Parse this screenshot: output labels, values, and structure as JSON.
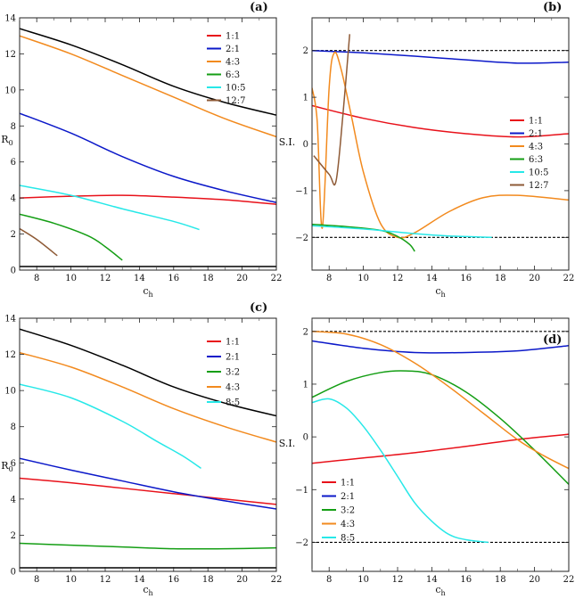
{
  "colors": {
    "red": "#e8111a",
    "blue": "#0b18c9",
    "orange": "#f28a1e",
    "green": "#149e14",
    "cyan": "#27e8e8",
    "brown": "#8e5a36",
    "black": "#000000"
  },
  "chart_data": [
    {
      "panel": "(a)",
      "type": "line",
      "xlabel": "c",
      "xlabel_sub": "h",
      "ylabel": "R",
      "ylabel_sub": "0",
      "xlim": [
        7,
        22
      ],
      "ylim": [
        0,
        14
      ],
      "xticks": [
        8,
        10,
        12,
        14,
        16,
        18,
        20,
        22
      ],
      "yticks": [
        0,
        2,
        4,
        6,
        8,
        10,
        12,
        14
      ],
      "legend_position": "top-right",
      "series": [
        {
          "name": "1:1",
          "color": "red",
          "x": [
            7,
            10,
            13,
            16,
            19,
            22
          ],
          "y": [
            4.0,
            4.1,
            4.15,
            4.05,
            3.9,
            3.65
          ]
        },
        {
          "name": "2:1",
          "color": "blue",
          "x": [
            7,
            10,
            13,
            16,
            19,
            22
          ],
          "y": [
            8.7,
            7.6,
            6.3,
            5.2,
            4.4,
            3.75
          ]
        },
        {
          "name": "4:3",
          "color": "orange",
          "x": [
            7,
            10,
            13,
            16,
            19,
            22
          ],
          "y": [
            13.0,
            12.0,
            10.8,
            9.6,
            8.4,
            7.4
          ]
        },
        {
          "name": "6:3",
          "color": "green",
          "x": [
            7,
            9,
            11,
            12,
            13
          ],
          "y": [
            3.1,
            2.6,
            1.9,
            1.3,
            0.55
          ]
        },
        {
          "name": "10:5",
          "color": "cyan",
          "x": [
            7,
            10,
            13,
            16,
            17.5
          ],
          "y": [
            4.7,
            4.15,
            3.4,
            2.7,
            2.25
          ]
        },
        {
          "name": "12:7",
          "color": "brown",
          "x": [
            7,
            8,
            9.2
          ],
          "y": [
            2.3,
            1.7,
            0.8
          ]
        },
        {
          "name": "",
          "color": "black",
          "x": [
            7,
            10,
            13,
            16,
            19,
            22
          ],
          "y": [
            13.4,
            12.5,
            11.4,
            10.2,
            9.3,
            8.6
          ]
        },
        {
          "name": "",
          "color": "black",
          "x": [
            7,
            22
          ],
          "y": [
            0.2,
            0.2
          ]
        }
      ]
    },
    {
      "panel": "(b)",
      "type": "line",
      "xlabel": "c",
      "xlabel_sub": "h",
      "ylabel": "S.I.",
      "ylabel_sub": "",
      "xlim": [
        7,
        22
      ],
      "ylim": [
        -2.7,
        2.7
      ],
      "xticks": [
        8,
        10,
        12,
        14,
        16,
        18,
        20,
        22
      ],
      "yticks": [
        -2,
        -1,
        0,
        1,
        2
      ],
      "hlines": [
        2,
        -2
      ],
      "legend_position": "right",
      "series": [
        {
          "name": "1:1",
          "color": "red",
          "x": [
            7,
            10,
            13,
            16,
            19,
            22
          ],
          "y": [
            0.82,
            0.55,
            0.35,
            0.22,
            0.15,
            0.22
          ]
        },
        {
          "name": "2:1",
          "color": "blue",
          "x": [
            7,
            10,
            13,
            16,
            19,
            22
          ],
          "y": [
            2.0,
            1.95,
            1.88,
            1.8,
            1.73,
            1.75
          ]
        },
        {
          "name": "4:3",
          "color": "orange",
          "x": [
            7,
            7.3,
            7.6,
            8.0,
            8.3,
            8.7,
            9.3,
            10,
            11,
            12,
            13,
            15,
            17,
            19,
            22
          ],
          "y": [
            1.2,
            0.5,
            -1.8,
            1.2,
            1.95,
            1.6,
            0.6,
            -0.6,
            -1.7,
            -2.0,
            -1.9,
            -1.45,
            -1.15,
            -1.1,
            -1.2
          ]
        },
        {
          "name": "6:3",
          "color": "green",
          "x": [
            7,
            9,
            11,
            12,
            12.7,
            13
          ],
          "y": [
            -1.72,
            -1.77,
            -1.85,
            -1.98,
            -2.15,
            -2.3
          ]
        },
        {
          "name": "10:5",
          "color": "cyan",
          "x": [
            7,
            10,
            13,
            15,
            17.5
          ],
          "y": [
            -1.75,
            -1.82,
            -1.92,
            -1.97,
            -2.0
          ]
        },
        {
          "name": "12:7",
          "color": "brown",
          "x": [
            7.1,
            8.0,
            8.4,
            8.8,
            9.2
          ],
          "y": [
            -0.25,
            -0.65,
            -0.8,
            0.6,
            2.35
          ]
        }
      ]
    },
    {
      "panel": "(c)",
      "type": "line",
      "xlabel": "c",
      "xlabel_sub": "h",
      "ylabel": "R",
      "ylabel_sub": "0",
      "xlim": [
        7,
        22
      ],
      "ylim": [
        0,
        14
      ],
      "xticks": [
        8,
        10,
        12,
        14,
        16,
        18,
        20,
        22
      ],
      "yticks": [
        0,
        2,
        4,
        6,
        8,
        10,
        12,
        14
      ],
      "legend_position": "top-right",
      "series": [
        {
          "name": "1:1",
          "color": "red",
          "x": [
            7,
            10,
            13,
            16,
            19,
            22
          ],
          "y": [
            5.15,
            4.9,
            4.6,
            4.3,
            4.0,
            3.7
          ]
        },
        {
          "name": "2:1",
          "color": "blue",
          "x": [
            7,
            10,
            13,
            16,
            19,
            22
          ],
          "y": [
            6.25,
            5.6,
            5.0,
            4.4,
            3.9,
            3.45
          ]
        },
        {
          "name": "3:2",
          "color": "green",
          "x": [
            7,
            10,
            13,
            16,
            19,
            22
          ],
          "y": [
            1.55,
            1.45,
            1.35,
            1.25,
            1.25,
            1.3
          ]
        },
        {
          "name": "4:3",
          "color": "orange",
          "x": [
            7,
            10,
            13,
            16,
            19,
            22
          ],
          "y": [
            12.1,
            11.3,
            10.2,
            9.0,
            8.0,
            7.15
          ]
        },
        {
          "name": "8:5",
          "color": "cyan",
          "x": [
            7,
            10,
            13,
            15,
            16.5,
            17.6
          ],
          "y": [
            10.35,
            9.6,
            8.3,
            7.2,
            6.4,
            5.7
          ]
        },
        {
          "name": "",
          "color": "black",
          "x": [
            7,
            10,
            13,
            16,
            19,
            22
          ],
          "y": [
            13.4,
            12.5,
            11.4,
            10.2,
            9.3,
            8.6
          ]
        },
        {
          "name": "",
          "color": "black",
          "x": [
            7,
            22
          ],
          "y": [
            0.2,
            0.2
          ]
        }
      ]
    },
    {
      "panel": "(d)",
      "type": "line",
      "xlabel": "c",
      "xlabel_sub": "h",
      "ylabel": "S.I.",
      "ylabel_sub": "",
      "xlim": [
        7,
        22
      ],
      "ylim": [
        -2.55,
        2.25
      ],
      "xticks": [
        8,
        10,
        12,
        14,
        16,
        18,
        20,
        22
      ],
      "yticks": [
        -2,
        -1,
        0,
        1,
        2
      ],
      "hlines": [
        2,
        -2
      ],
      "legend_position": "bottom-left",
      "series": [
        {
          "name": "1:1",
          "color": "red",
          "x": [
            7,
            10,
            13,
            16,
            19,
            22
          ],
          "y": [
            -0.5,
            -0.4,
            -0.3,
            -0.18,
            -0.05,
            0.05
          ]
        },
        {
          "name": "2:1",
          "color": "blue",
          "x": [
            7,
            10,
            13,
            16,
            19,
            22
          ],
          "y": [
            1.82,
            1.68,
            1.6,
            1.6,
            1.63,
            1.73
          ]
        },
        {
          "name": "3:2",
          "color": "green",
          "x": [
            7,
            9,
            11,
            12.5,
            14,
            16,
            18,
            20,
            22
          ],
          "y": [
            0.75,
            1.05,
            1.22,
            1.25,
            1.18,
            0.85,
            0.35,
            -0.25,
            -0.9
          ]
        },
        {
          "name": "4:3",
          "color": "orange",
          "x": [
            7,
            9,
            11,
            13,
            15,
            17,
            19,
            20.5,
            22
          ],
          "y": [
            2.0,
            1.95,
            1.75,
            1.4,
            0.95,
            0.45,
            -0.05,
            -0.35,
            -0.6
          ]
        },
        {
          "name": "8:5",
          "color": "cyan",
          "x": [
            7,
            8,
            9,
            10,
            11,
            12,
            13,
            14,
            15,
            16,
            17.3
          ],
          "y": [
            0.65,
            0.72,
            0.55,
            0.2,
            -0.25,
            -0.75,
            -1.25,
            -1.6,
            -1.85,
            -1.95,
            -2.0
          ]
        }
      ]
    }
  ]
}
